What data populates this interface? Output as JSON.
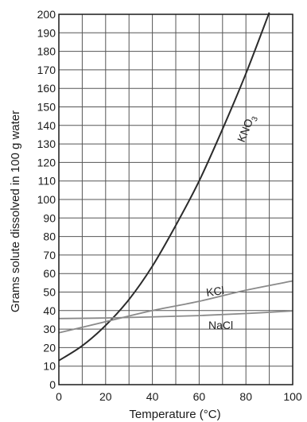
{
  "chart_data": {
    "type": "line",
    "title": "",
    "xlabel": "Temperature (°C)",
    "ylabel": "Grams solute dissolved in 100 g water",
    "xlim": [
      0,
      100
    ],
    "ylim": [
      0,
      200
    ],
    "x_ticks": [
      0,
      20,
      40,
      60,
      80,
      100
    ],
    "y_ticks": [
      0,
      10,
      20,
      30,
      40,
      50,
      60,
      70,
      80,
      90,
      100,
      110,
      120,
      130,
      140,
      150,
      160,
      170,
      180,
      190,
      200
    ],
    "grid": true,
    "series": [
      {
        "name": "KNO3",
        "label_text": "KNO",
        "label_subscript": "3",
        "color": "#2b2b2b",
        "x": [
          0,
          10,
          20,
          30,
          40,
          50,
          60,
          70,
          80,
          90
        ],
        "y": [
          13,
          21,
          32,
          46,
          64,
          86,
          110,
          138,
          168,
          201
        ]
      },
      {
        "name": "KCl",
        "label_text": "KCl",
        "color": "#8a8a8a",
        "x": [
          0,
          20,
          40,
          60,
          80,
          100
        ],
        "y": [
          28,
          34,
          40,
          45,
          51,
          56
        ]
      },
      {
        "name": "NaCl",
        "label_text": "NaCl",
        "color": "#8a8a8a",
        "x": [
          0,
          20,
          40,
          60,
          80,
          100
        ],
        "y": [
          35.7,
          36.0,
          36.6,
          37.3,
          38.4,
          39.8
        ]
      }
    ]
  }
}
